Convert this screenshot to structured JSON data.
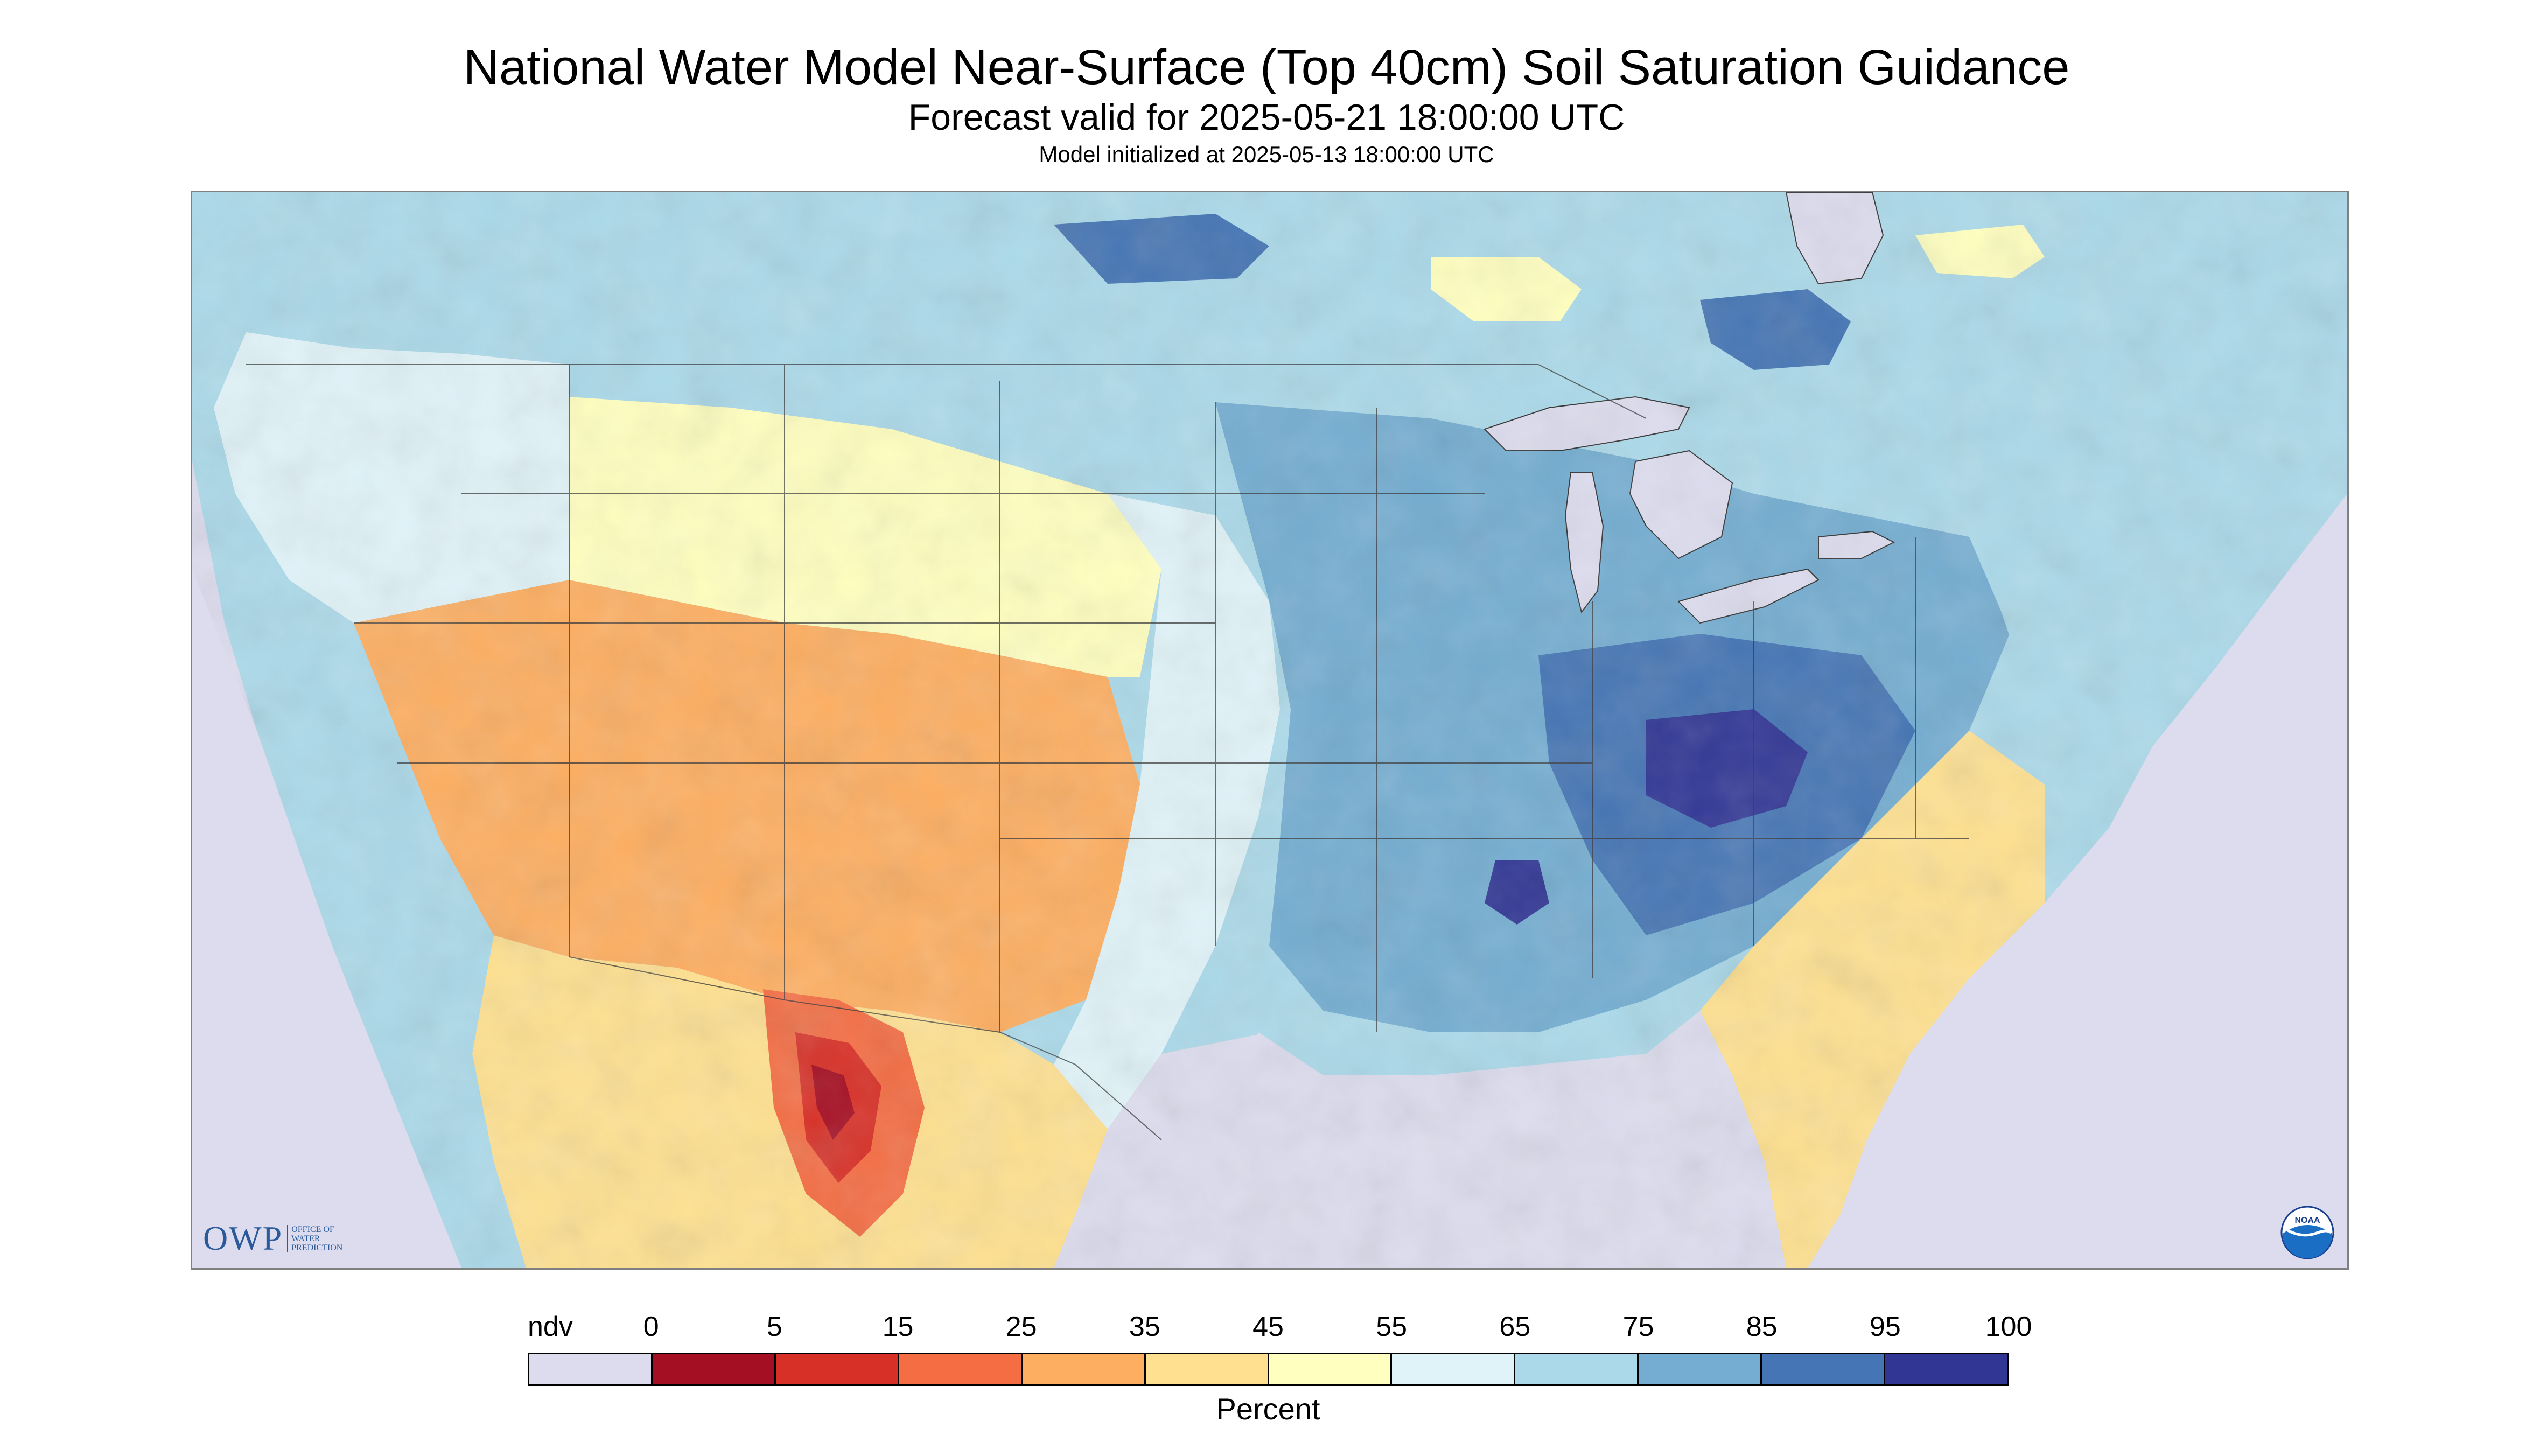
{
  "header": {
    "title": "National Water Model Near-Surface (Top 40cm) Soil Saturation Guidance",
    "subtitle": "Forecast valid for 2025-05-21 18:00:00 UTC",
    "initialized": "Model initialized at 2025-05-13 18:00:00 UTC"
  },
  "logos": {
    "owp_text": "OWP",
    "owp_subtext": "Office of Water Prediction",
    "noaa_text": "NOAA"
  },
  "legend": {
    "labels": [
      "ndv",
      "0",
      "5",
      "15",
      "25",
      "35",
      "45",
      "55",
      "65",
      "75",
      "85",
      "95",
      "100"
    ],
    "colors": [
      "#dcdcee",
      "#a50f23",
      "#d73027",
      "#f46d43",
      "#fdae61",
      "#fee090",
      "#ffffbf",
      "#e0f3f8",
      "#abd9e9",
      "#74add1",
      "#4575b4",
      "#313695"
    ],
    "unit": "Percent"
  },
  "map": {
    "nodata_color": "#dcdcee",
    "ocean_color": "#dcdcee",
    "lake_color": "#dcdcee",
    "border_color": "#333333"
  }
}
